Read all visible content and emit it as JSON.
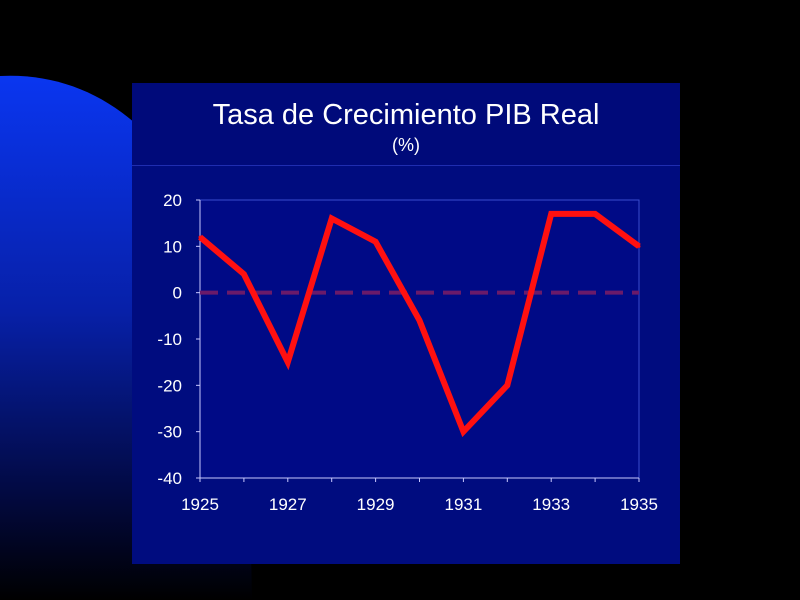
{
  "colors": {
    "background": "#000000",
    "accent_blue": "#0a2fe0",
    "panel": "#000c7f",
    "series_line": "#ff1010",
    "zero_line": "#6a1a6a"
  },
  "chart_data": {
    "type": "line",
    "title": "Tasa de Crecimiento PIB Real",
    "subtitle": "(%)",
    "xlabel": "",
    "ylabel": "",
    "x": [
      1925,
      1926,
      1927,
      1928,
      1929,
      1930,
      1931,
      1932,
      1933,
      1934,
      1935
    ],
    "series": [
      {
        "values": [
          12,
          4,
          -15,
          16,
          11,
          -6,
          -30,
          -20,
          17,
          17,
          10
        ]
      }
    ],
    "reference_line": {
      "value": 0,
      "style": "dashed"
    },
    "xlim": [
      1925,
      1935
    ],
    "ylim": [
      -40,
      20
    ],
    "y_ticks": [
      20,
      10,
      0,
      -10,
      -20,
      -30,
      -40
    ],
    "x_tick_labels": [
      "1925",
      "1927",
      "1929",
      "1931",
      "1933",
      "1935"
    ],
    "legend": "none",
    "grid": false
  }
}
